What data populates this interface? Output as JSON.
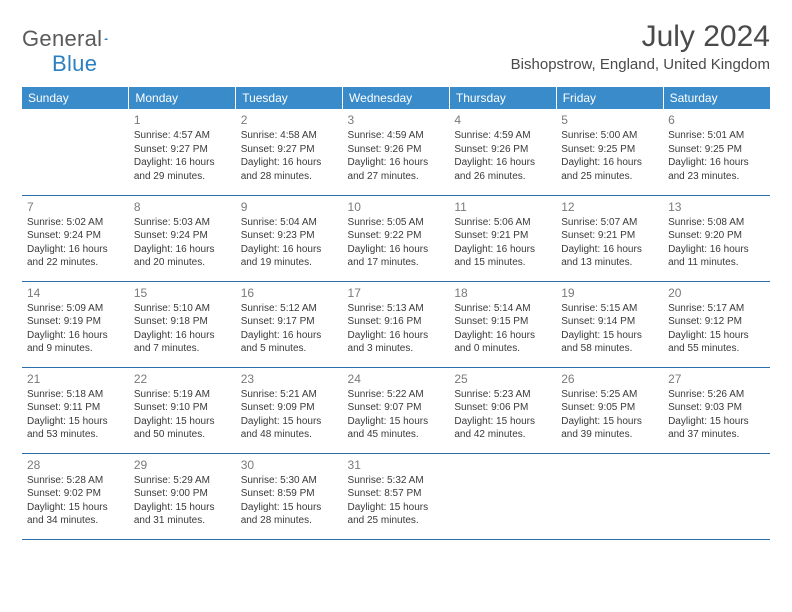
{
  "logo": {
    "text1": "General",
    "text2": "Blue"
  },
  "title": "July 2024",
  "location": "Bishopstrow, England, United Kingdom",
  "colors": {
    "header_bg": "#3a8bc9",
    "header_text": "#ffffff",
    "row_border": "#2d6fa8",
    "daynum": "#7a7a7a",
    "body_text": "#3a3a3a",
    "logo_gray": "#5a5a5a",
    "logo_blue": "#2d7fc0"
  },
  "day_headers": [
    "Sunday",
    "Monday",
    "Tuesday",
    "Wednesday",
    "Thursday",
    "Friday",
    "Saturday"
  ],
  "weeks": [
    [
      null,
      {
        "n": "1",
        "sr": "Sunrise: 4:57 AM",
        "ss": "Sunset: 9:27 PM",
        "d1": "Daylight: 16 hours",
        "d2": "and 29 minutes."
      },
      {
        "n": "2",
        "sr": "Sunrise: 4:58 AM",
        "ss": "Sunset: 9:27 PM",
        "d1": "Daylight: 16 hours",
        "d2": "and 28 minutes."
      },
      {
        "n": "3",
        "sr": "Sunrise: 4:59 AM",
        "ss": "Sunset: 9:26 PM",
        "d1": "Daylight: 16 hours",
        "d2": "and 27 minutes."
      },
      {
        "n": "4",
        "sr": "Sunrise: 4:59 AM",
        "ss": "Sunset: 9:26 PM",
        "d1": "Daylight: 16 hours",
        "d2": "and 26 minutes."
      },
      {
        "n": "5",
        "sr": "Sunrise: 5:00 AM",
        "ss": "Sunset: 9:25 PM",
        "d1": "Daylight: 16 hours",
        "d2": "and 25 minutes."
      },
      {
        "n": "6",
        "sr": "Sunrise: 5:01 AM",
        "ss": "Sunset: 9:25 PM",
        "d1": "Daylight: 16 hours",
        "d2": "and 23 minutes."
      }
    ],
    [
      {
        "n": "7",
        "sr": "Sunrise: 5:02 AM",
        "ss": "Sunset: 9:24 PM",
        "d1": "Daylight: 16 hours",
        "d2": "and 22 minutes."
      },
      {
        "n": "8",
        "sr": "Sunrise: 5:03 AM",
        "ss": "Sunset: 9:24 PM",
        "d1": "Daylight: 16 hours",
        "d2": "and 20 minutes."
      },
      {
        "n": "9",
        "sr": "Sunrise: 5:04 AM",
        "ss": "Sunset: 9:23 PM",
        "d1": "Daylight: 16 hours",
        "d2": "and 19 minutes."
      },
      {
        "n": "10",
        "sr": "Sunrise: 5:05 AM",
        "ss": "Sunset: 9:22 PM",
        "d1": "Daylight: 16 hours",
        "d2": "and 17 minutes."
      },
      {
        "n": "11",
        "sr": "Sunrise: 5:06 AM",
        "ss": "Sunset: 9:21 PM",
        "d1": "Daylight: 16 hours",
        "d2": "and 15 minutes."
      },
      {
        "n": "12",
        "sr": "Sunrise: 5:07 AM",
        "ss": "Sunset: 9:21 PM",
        "d1": "Daylight: 16 hours",
        "d2": "and 13 minutes."
      },
      {
        "n": "13",
        "sr": "Sunrise: 5:08 AM",
        "ss": "Sunset: 9:20 PM",
        "d1": "Daylight: 16 hours",
        "d2": "and 11 minutes."
      }
    ],
    [
      {
        "n": "14",
        "sr": "Sunrise: 5:09 AM",
        "ss": "Sunset: 9:19 PM",
        "d1": "Daylight: 16 hours",
        "d2": "and 9 minutes."
      },
      {
        "n": "15",
        "sr": "Sunrise: 5:10 AM",
        "ss": "Sunset: 9:18 PM",
        "d1": "Daylight: 16 hours",
        "d2": "and 7 minutes."
      },
      {
        "n": "16",
        "sr": "Sunrise: 5:12 AM",
        "ss": "Sunset: 9:17 PM",
        "d1": "Daylight: 16 hours",
        "d2": "and 5 minutes."
      },
      {
        "n": "17",
        "sr": "Sunrise: 5:13 AM",
        "ss": "Sunset: 9:16 PM",
        "d1": "Daylight: 16 hours",
        "d2": "and 3 minutes."
      },
      {
        "n": "18",
        "sr": "Sunrise: 5:14 AM",
        "ss": "Sunset: 9:15 PM",
        "d1": "Daylight: 16 hours",
        "d2": "and 0 minutes."
      },
      {
        "n": "19",
        "sr": "Sunrise: 5:15 AM",
        "ss": "Sunset: 9:14 PM",
        "d1": "Daylight: 15 hours",
        "d2": "and 58 minutes."
      },
      {
        "n": "20",
        "sr": "Sunrise: 5:17 AM",
        "ss": "Sunset: 9:12 PM",
        "d1": "Daylight: 15 hours",
        "d2": "and 55 minutes."
      }
    ],
    [
      {
        "n": "21",
        "sr": "Sunrise: 5:18 AM",
        "ss": "Sunset: 9:11 PM",
        "d1": "Daylight: 15 hours",
        "d2": "and 53 minutes."
      },
      {
        "n": "22",
        "sr": "Sunrise: 5:19 AM",
        "ss": "Sunset: 9:10 PM",
        "d1": "Daylight: 15 hours",
        "d2": "and 50 minutes."
      },
      {
        "n": "23",
        "sr": "Sunrise: 5:21 AM",
        "ss": "Sunset: 9:09 PM",
        "d1": "Daylight: 15 hours",
        "d2": "and 48 minutes."
      },
      {
        "n": "24",
        "sr": "Sunrise: 5:22 AM",
        "ss": "Sunset: 9:07 PM",
        "d1": "Daylight: 15 hours",
        "d2": "and 45 minutes."
      },
      {
        "n": "25",
        "sr": "Sunrise: 5:23 AM",
        "ss": "Sunset: 9:06 PM",
        "d1": "Daylight: 15 hours",
        "d2": "and 42 minutes."
      },
      {
        "n": "26",
        "sr": "Sunrise: 5:25 AM",
        "ss": "Sunset: 9:05 PM",
        "d1": "Daylight: 15 hours",
        "d2": "and 39 minutes."
      },
      {
        "n": "27",
        "sr": "Sunrise: 5:26 AM",
        "ss": "Sunset: 9:03 PM",
        "d1": "Daylight: 15 hours",
        "d2": "and 37 minutes."
      }
    ],
    [
      {
        "n": "28",
        "sr": "Sunrise: 5:28 AM",
        "ss": "Sunset: 9:02 PM",
        "d1": "Daylight: 15 hours",
        "d2": "and 34 minutes."
      },
      {
        "n": "29",
        "sr": "Sunrise: 5:29 AM",
        "ss": "Sunset: 9:00 PM",
        "d1": "Daylight: 15 hours",
        "d2": "and 31 minutes."
      },
      {
        "n": "30",
        "sr": "Sunrise: 5:30 AM",
        "ss": "Sunset: 8:59 PM",
        "d1": "Daylight: 15 hours",
        "d2": "and 28 minutes."
      },
      {
        "n": "31",
        "sr": "Sunrise: 5:32 AM",
        "ss": "Sunset: 8:57 PM",
        "d1": "Daylight: 15 hours",
        "d2": "and 25 minutes."
      },
      null,
      null,
      null
    ]
  ]
}
